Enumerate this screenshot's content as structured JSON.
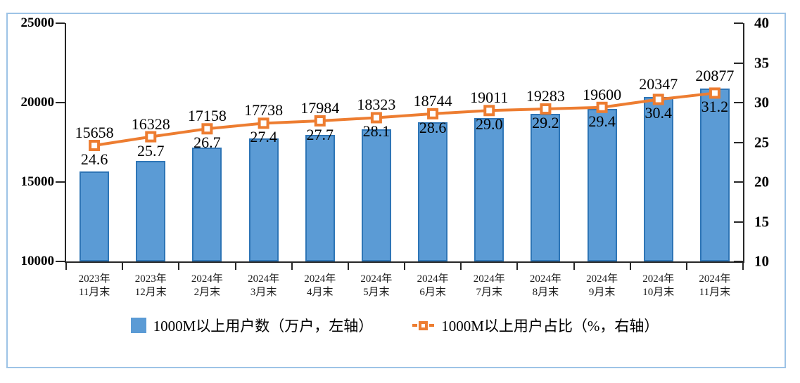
{
  "chart_data": {
    "type": "combo-bar-line",
    "categories": [
      "2023年\n11月末",
      "2023年\n12月末",
      "2024年\n2月末",
      "2024年\n3月末",
      "2024年\n4月末",
      "2024年\n5月末",
      "2024年\n6月末",
      "2024年\n7月末",
      "2024年\n8月末",
      "2024年\n9月末",
      "2024年\n10月末",
      "2024年\n11月末"
    ],
    "series": [
      {
        "name": "1000M以上用户数（万户，左轴）",
        "type": "bar",
        "axis": "left",
        "values": [
          15658,
          16328,
          17158,
          17738,
          17984,
          18323,
          18744,
          19011,
          19283,
          19600,
          20347,
          20877
        ]
      },
      {
        "name": "1000M以上用户占比（%，右轴）",
        "type": "line",
        "axis": "right",
        "values": [
          24.6,
          25.7,
          26.7,
          27.4,
          27.7,
          28.1,
          28.6,
          29.0,
          29.2,
          29.4,
          30.4,
          31.2
        ]
      }
    ],
    "left_axis": {
      "min": 10000,
      "max": 25000,
      "ticks": [
        "10000",
        "15000",
        "20000",
        "25000"
      ]
    },
    "right_axis": {
      "min": 10,
      "max": 40,
      "ticks": [
        "10",
        "15",
        "20",
        "25",
        "30",
        "35",
        "40"
      ]
    },
    "grid": false,
    "legend_position": "bottom",
    "colors": {
      "bar_fill": "#5B9BD5",
      "bar_border": "#2E75B6",
      "line": "#ED7D31",
      "marker_fill": "#FFFFFF",
      "axis": "#262626",
      "frame_border": "#9DC3E6",
      "text": "#000000"
    },
    "legend": [
      {
        "label": "1000M以上用户数（万户，左轴）"
      },
      {
        "label": "1000M以上用户占比（%，右轴）"
      }
    ]
  }
}
